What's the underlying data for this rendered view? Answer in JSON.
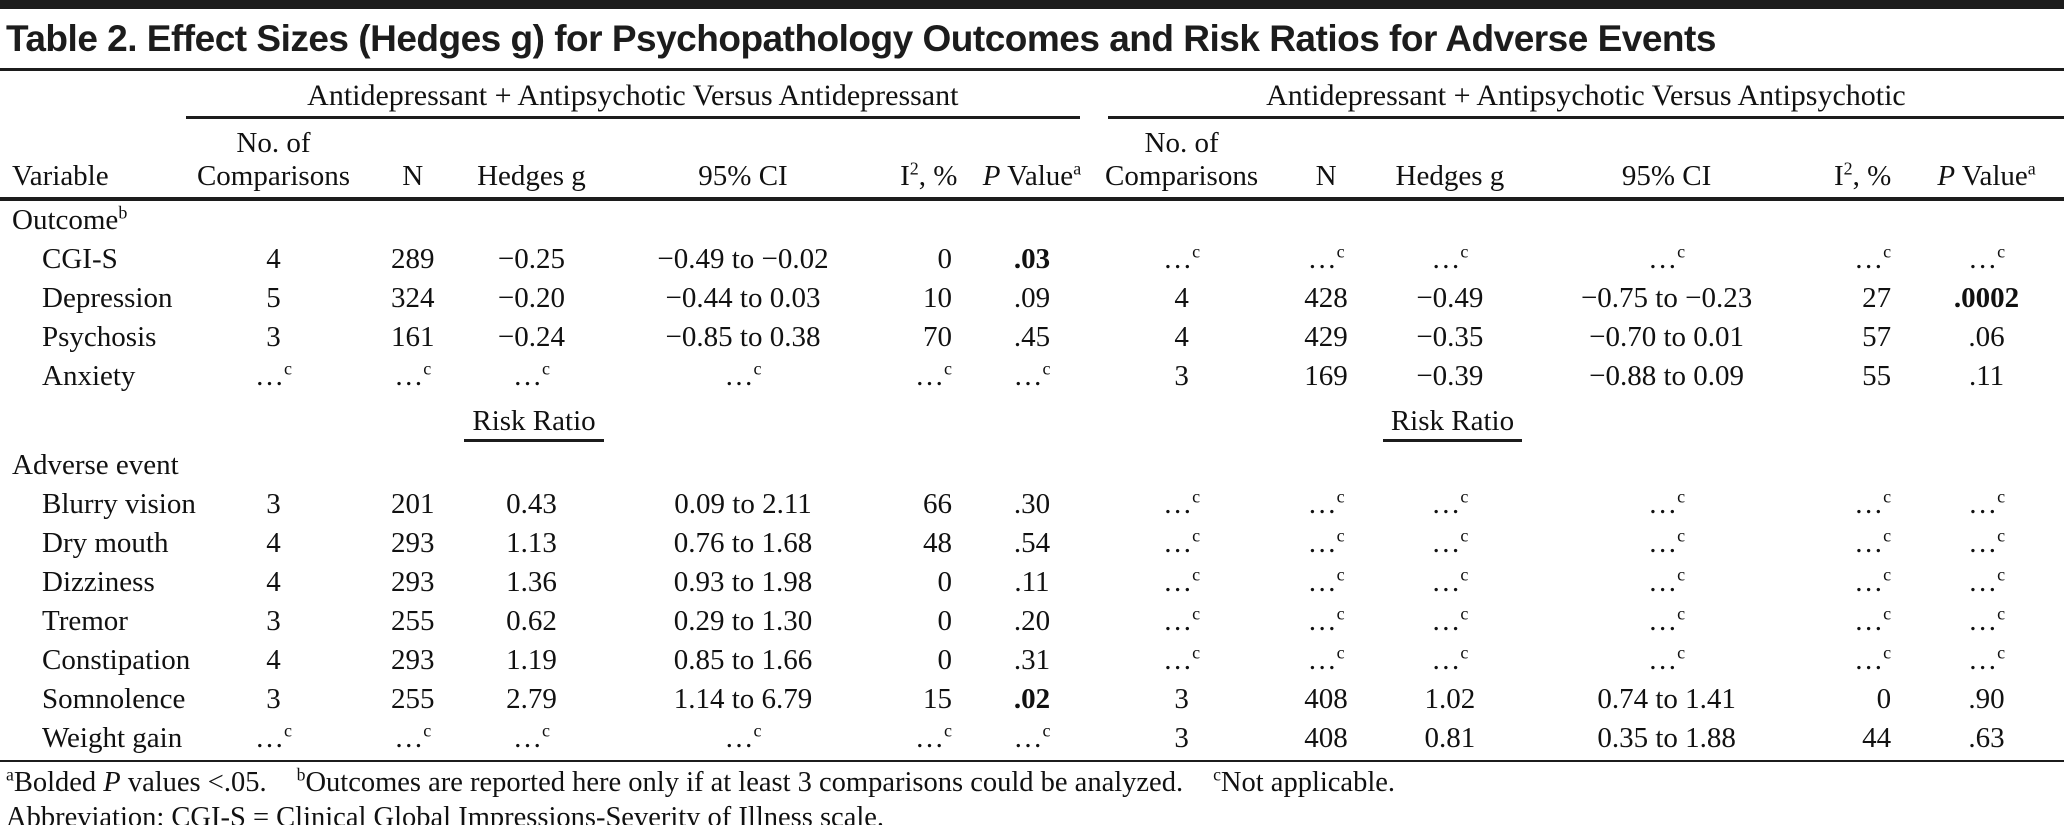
{
  "title": "Table 2. Effect Sizes (Hedges g) for Psychopathology Outcomes and Risk Ratios for Adverse Events",
  "table": {
    "group_headers": [
      "Antidepressant + Antipsychotic Versus Antidepressant",
      "Antidepressant + Antipsychotic Versus Antipsychotic"
    ],
    "col_headers": {
      "variable": "Variable",
      "no_of": "No. of",
      "comparisons": "Comparisons",
      "n": "N",
      "hedges_g": "Hedges g",
      "ci": "95% CI",
      "i2_base": "I",
      "i2_sup": "2",
      "i2_rest": ", %",
      "p_italic": "P",
      "p_rest": " Value",
      "p_sup": "a"
    },
    "risk_ratio_label": "Risk Ratio",
    "na_symbol": "…",
    "na_sup": "c",
    "sections": [
      {
        "label": "Outcome",
        "label_sup": "b",
        "items": [
          {
            "label": "CGI-S",
            "left": [
              "4",
              "289",
              "−0.25",
              "−0.49 to −0.02",
              "0",
              {
                "v": ".03",
                "b": true
              }
            ],
            "right": [
              "NA",
              "NA",
              "NA",
              "NA",
              "NA",
              "NA"
            ]
          },
          {
            "label": "Depression",
            "left": [
              "5",
              "324",
              "−0.20",
              "−0.44 to 0.03",
              "10",
              ".09"
            ],
            "right": [
              "4",
              "428",
              "−0.49",
              "−0.75 to −0.23",
              "27",
              {
                "v": ".0002",
                "b": true
              }
            ]
          },
          {
            "label": "Psychosis",
            "left": [
              "3",
              "161",
              "−0.24",
              "−0.85 to 0.38",
              "70",
              ".45"
            ],
            "right": [
              "4",
              "429",
              "−0.35",
              "−0.70 to 0.01",
              "57",
              ".06"
            ]
          },
          {
            "label": "Anxiety",
            "left": [
              "NA",
              "NA",
              "NA",
              "NA",
              "NA",
              "NA"
            ],
            "right": [
              "3",
              "169",
              "−0.39",
              "−0.88 to 0.09",
              "55",
              ".11"
            ]
          }
        ]
      },
      {
        "risk_ratio_row": true
      },
      {
        "label": "Adverse event",
        "label_sup": "",
        "items": [
          {
            "label": "Blurry vision",
            "left": [
              "3",
              "201",
              "0.43",
              "0.09 to 2.11",
              "66",
              ".30"
            ],
            "right": [
              "NA",
              "NA",
              "NA",
              "NA",
              "NA",
              "NA"
            ]
          },
          {
            "label": "Dry mouth",
            "left": [
              "4",
              "293",
              "1.13",
              "0.76 to 1.68",
              "48",
              ".54"
            ],
            "right": [
              "NA",
              "NA",
              "NA",
              "NA",
              "NA",
              "NA"
            ]
          },
          {
            "label": "Dizziness",
            "left": [
              "4",
              "293",
              "1.36",
              "0.93 to 1.98",
              "0",
              ".11"
            ],
            "right": [
              "NA",
              "NA",
              "NA",
              "NA",
              "NA",
              "NA"
            ]
          },
          {
            "label": "Tremor",
            "left": [
              "3",
              "255",
              "0.62",
              "0.29 to 1.30",
              "0",
              ".20"
            ],
            "right": [
              "NA",
              "NA",
              "NA",
              "NA",
              "NA",
              "NA"
            ]
          },
          {
            "label": "Constipation",
            "left": [
              "4",
              "293",
              "1.19",
              "0.85 to 1.66",
              "0",
              ".31"
            ],
            "right": [
              "NA",
              "NA",
              "NA",
              "NA",
              "NA",
              "NA"
            ]
          },
          {
            "label": "Somnolence",
            "left": [
              "3",
              "255",
              "2.79",
              "1.14 to 6.79",
              "15",
              {
                "v": ".02",
                "b": true
              }
            ],
            "right": [
              "3",
              "408",
              "1.02",
              "0.74 to 1.41",
              "0",
              ".90"
            ]
          },
          {
            "label": "Weight gain",
            "left": [
              "NA",
              "NA",
              "NA",
              "NA",
              "NA",
              "NA"
            ],
            "right": [
              "3",
              "408",
              "0.81",
              "0.35 to 1.88",
              "44",
              ".63"
            ]
          }
        ]
      }
    ]
  },
  "footnotes": {
    "notes": [
      {
        "sup": "a",
        "segments": [
          {
            "t": "Bolded "
          },
          {
            "t": "P",
            "i": true
          },
          {
            "t": " values <.05."
          }
        ]
      },
      {
        "sup": "b",
        "segments": [
          {
            "t": "Outcomes are reported here only if at least 3 comparisons could be analyzed."
          }
        ]
      },
      {
        "sup": "c",
        "segments": [
          {
            "t": "Not applicable."
          }
        ]
      }
    ],
    "abbreviation": "Abbreviation: CGI-S = Clinical Global Impressions-Severity of Illness scale."
  }
}
